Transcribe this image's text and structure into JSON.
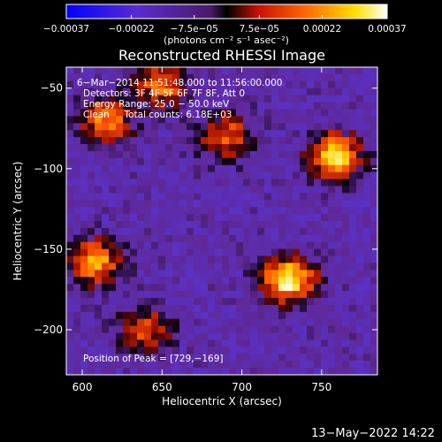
{
  "chart_data": {
    "type": "heatmap",
    "title": "Reconstructed RHESSI Image",
    "xlabel": "Heliocentric X (arcsec)",
    "ylabel": "Heliocentric Y (arcsec)",
    "xlim": [
      590,
      785
    ],
    "ylim": [
      -228,
      -37
    ],
    "x_ticks": [
      600,
      650,
      700,
      750
    ],
    "x_tick_labels": [
      "600",
      "650",
      "700",
      "750"
    ],
    "y_ticks": [
      -50,
      -100,
      -150,
      -200
    ],
    "y_tick_labels": [
      "−50",
      "−100",
      "−150",
      "−200"
    ],
    "colorbar": {
      "vmin": -0.00037,
      "vmax": 0.00037,
      "ticks": [
        -0.00037,
        -0.00022,
        -7.5e-05,
        7.5e-05,
        0.00022,
        0.00037
      ],
      "tick_labels": [
        "−0.00037",
        "−0.00022",
        "−7.5e−05",
        "7.5e−05",
        "0.00022",
        "0.00037"
      ],
      "unit_label": "(photons cm⁻² s⁻¹ asec⁻²)",
      "colormap": "blue-purple-red-yellow-white"
    },
    "annotations": [
      "6−Mar−2014 11:51:48.000 to 11:56:00.000",
      "Detectors: 3F 4F 5F 6F 7F 8F, Att 0",
      "Energy Range: 25.0 − 50.0 keV",
      "Clean     Total counts: 6.18E+03"
    ],
    "peak_label": "Position of Peak = [729,−169]",
    "peak": {
      "x": 729,
      "y": -169
    },
    "bright_regions": [
      {
        "x": 729,
        "y": -169,
        "value": 0.00037
      },
      {
        "x": 758,
        "y": -92,
        "value": 0.00033
      },
      {
        "x": 608,
        "y": -158,
        "value": 0.00025
      },
      {
        "x": 615,
        "y": -70,
        "value": 0.00022
      },
      {
        "x": 650,
        "y": -48,
        "value": 0.0002
      },
      {
        "x": 690,
        "y": -80,
        "value": 0.00018
      },
      {
        "x": 640,
        "y": -200,
        "value": 0.00015
      }
    ]
  },
  "footer": {
    "date": "13−May−2022 14:22"
  }
}
